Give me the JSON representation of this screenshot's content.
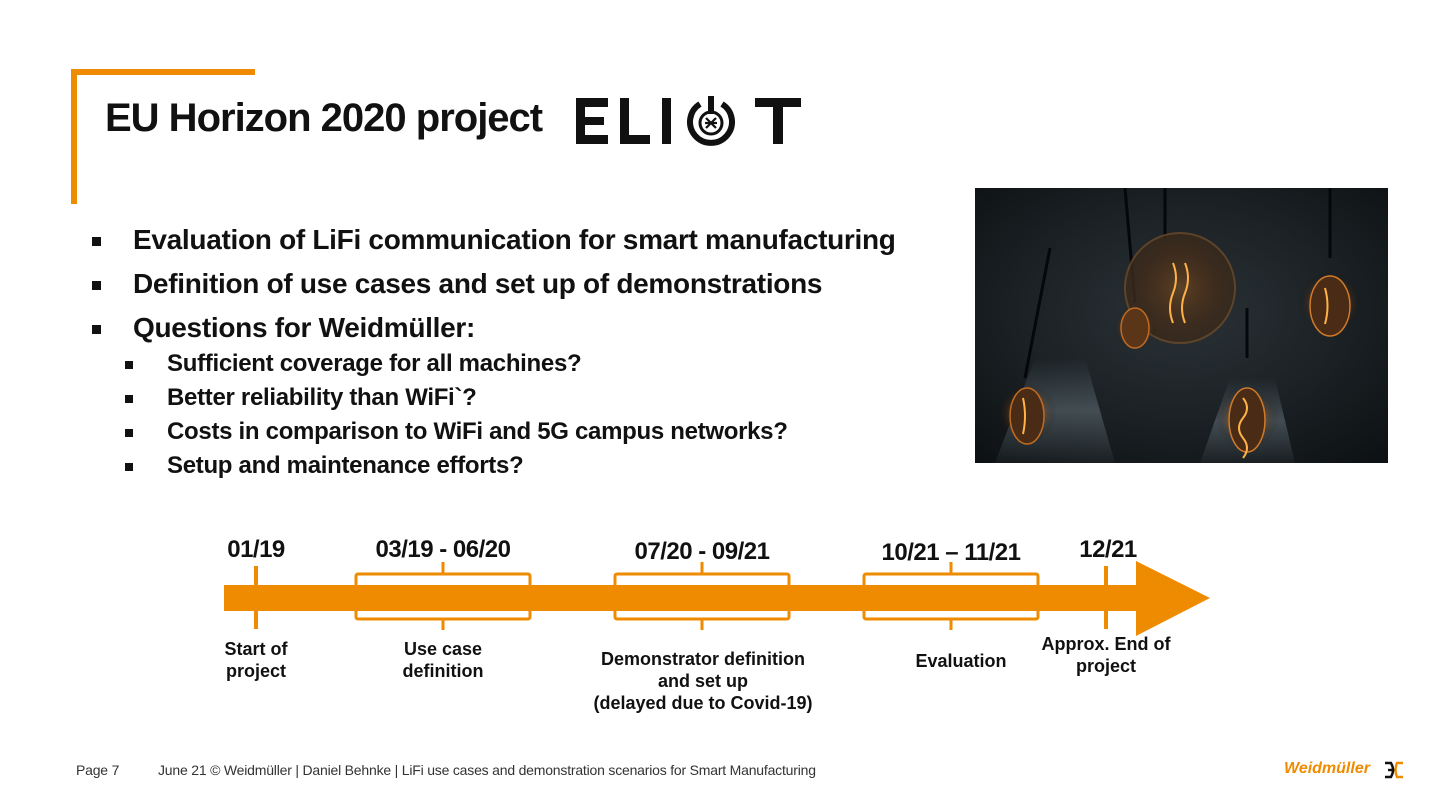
{
  "slide": {
    "title": "EU Horizon 2020 project",
    "logo_text": "ELIOT",
    "accent_color": "#ef8b00",
    "bullets": [
      "Evaluation of LiFi communication for smart manufacturing",
      "Definition of use cases and set up of demonstrations",
      "Questions for Weidmüller:"
    ],
    "sub_bullets": [
      "Sufficient coverage for all machines?",
      "Better reliability than WiFi`?",
      "Costs in comparison to WiFi and 5G campus networks?",
      "Setup and maintenance efforts?"
    ],
    "photo_icon": "hanging-light-bulbs-photo"
  },
  "timeline": {
    "milestones": [
      {
        "date": "01/19",
        "label_lines": [
          "Start of",
          "project"
        ]
      },
      {
        "date": "03/19 - 06/20",
        "label_lines": [
          "Use case",
          "definition"
        ]
      },
      {
        "date": "07/20 - 09/21",
        "label_lines": [
          "Demonstrator definition",
          "and set up",
          "(delayed due to Covid-19)"
        ]
      },
      {
        "date": "10/21 – 11/21",
        "label_lines": [
          "Evaluation"
        ]
      },
      {
        "date": "12/21",
        "label_lines": [
          "Approx. End of",
          "project"
        ]
      }
    ]
  },
  "footer": {
    "page": "Page 7",
    "info": "June 21  ©  Weidmüller  |  Daniel Behnke | LiFi use cases and demonstration scenarios for Smart Manufacturing",
    "brand": "Weidmüller"
  }
}
